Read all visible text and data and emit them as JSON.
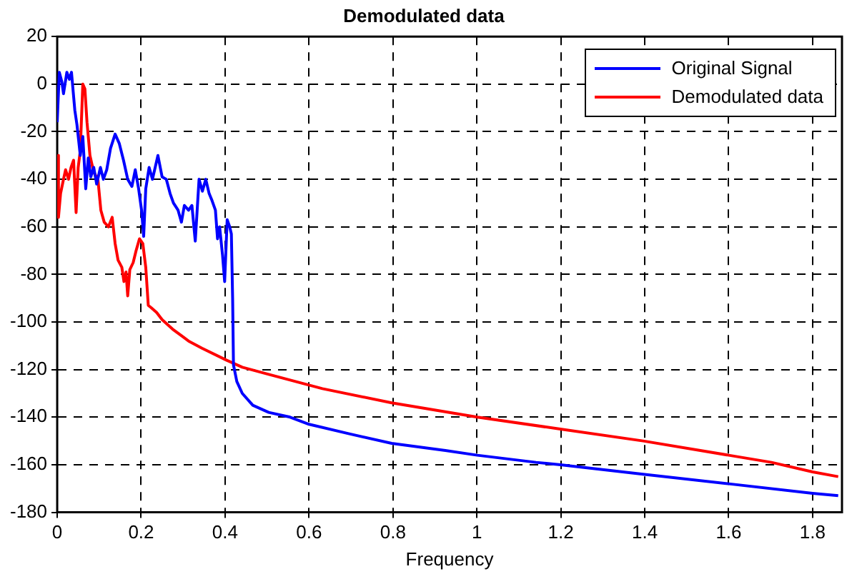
{
  "chart_data": {
    "type": "line",
    "title": "Demodulated data",
    "xlabel": "Frequency",
    "xlim": [
      0,
      1.87
    ],
    "xticks": [
      0,
      0.2,
      0.4,
      0.6,
      0.8,
      1,
      1.2,
      1.4,
      1.6,
      1.8
    ],
    "ylim": [
      -180,
      20
    ],
    "yticks": [
      -180,
      -160,
      -140,
      -120,
      -100,
      -80,
      -60,
      -40,
      -20,
      0,
      20
    ],
    "grid": true,
    "legend": "top right",
    "marker": "none",
    "line_style": "solid",
    "series": [
      {
        "name": "Original Signal",
        "color": "#0000ff",
        "x": [
          0,
          0.005,
          0.011,
          0.015,
          0.023,
          0.029,
          0.034,
          0.042,
          0.047,
          0.055,
          0.061,
          0.068,
          0.074,
          0.08,
          0.087,
          0.094,
          0.103,
          0.11,
          0.118,
          0.127,
          0.138,
          0.148,
          0.158,
          0.168,
          0.178,
          0.186,
          0.194,
          0.201,
          0.206,
          0.211,
          0.219,
          0.227,
          0.24,
          0.25,
          0.26,
          0.269,
          0.277,
          0.288,
          0.296,
          0.303,
          0.313,
          0.321,
          0.329,
          0.338,
          0.346,
          0.354,
          0.362,
          0.369,
          0.377,
          0.382,
          0.387,
          0.394,
          0.399,
          0.405,
          0.411,
          0.415,
          0.418,
          0.42,
          0.428,
          0.441,
          0.466,
          0.504,
          0.555,
          0.6,
          0.696,
          0.797,
          0.925,
          1.001,
          1.141,
          1.199,
          1.396,
          1.6,
          1.8,
          1.861
        ],
        "values": [
          -16,
          5,
          1,
          -4,
          5,
          2,
          5,
          -11,
          -17,
          -30,
          -22,
          -44,
          -31,
          -39,
          -35,
          -42,
          -35,
          -40,
          -36,
          -27,
          -21,
          -25,
          -32,
          -40,
          -43,
          -36,
          -44,
          -53,
          -64,
          -44,
          -35,
          -40,
          -30,
          -39,
          -40,
          -46,
          -50,
          -53,
          -58,
          -51,
          -53,
          -51,
          -66,
          -40,
          -45,
          -40,
          -46,
          -49,
          -53,
          -65,
          -60,
          -72,
          -83,
          -57,
          -60,
          -63,
          -90,
          -118,
          -125,
          -130,
          -135,
          -138,
          -140,
          -143,
          -147,
          -151,
          -154,
          -156,
          -159,
          -160,
          -164,
          -168,
          -172,
          -173
        ]
      },
      {
        "name": "Demodulated data",
        "color": "#ff0000",
        "x": [
          0,
          0.003,
          0.008,
          0.015,
          0.02,
          0.027,
          0.033,
          0.039,
          0.045,
          0.05,
          0.055,
          0.061,
          0.066,
          0.071,
          0.078,
          0.087,
          0.097,
          0.104,
          0.112,
          0.122,
          0.131,
          0.138,
          0.145,
          0.154,
          0.159,
          0.164,
          0.168,
          0.173,
          0.181,
          0.188,
          0.196,
          0.204,
          0.211,
          0.217,
          0.224,
          0.237,
          0.25,
          0.275,
          0.313,
          0.345,
          0.403,
          0.441,
          0.504,
          0.632,
          0.797,
          1.001,
          1.199,
          1.396,
          1.6,
          1.702,
          1.8,
          1.861
        ],
        "values": [
          -30,
          -56,
          -46,
          -40,
          -36,
          -40,
          -35,
          -32,
          -54,
          -35,
          -28,
          0,
          -2,
          -16,
          -30,
          -37,
          -40,
          -53,
          -58,
          -60,
          -56,
          -67,
          -74,
          -77,
          -83,
          -79,
          -89,
          -78,
          -75,
          -70,
          -65,
          -67,
          -77,
          -93,
          -94,
          -96,
          -99,
          -103,
          -108,
          -111,
          -116,
          -119,
          -122,
          -128,
          -134,
          -140,
          -145,
          -150,
          -156,
          -159,
          -163,
          -165
        ]
      }
    ]
  }
}
